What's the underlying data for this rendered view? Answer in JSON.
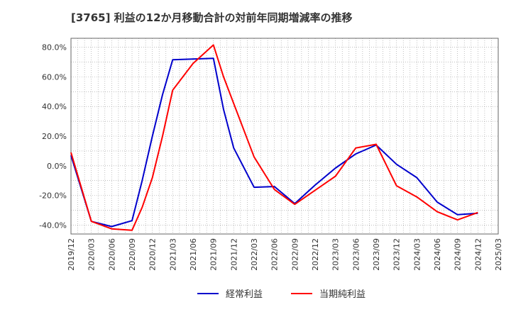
{
  "chart_data": {
    "type": "line",
    "title": "[3765]  利益の12か月移動合計の対前年同期増減率の推移",
    "xlabel": "",
    "ylabel": "",
    "ylim": [
      -46,
      86
    ],
    "yticks": [
      -40,
      -20,
      0,
      20,
      40,
      60,
      80
    ],
    "ytick_labels": [
      "-40.0%",
      "-20.0%",
      "0.0%",
      "20.0%",
      "40.0%",
      "60.0%",
      "80.0%"
    ],
    "x_ticks": [
      "2019/12",
      "2020/03",
      "2020/06",
      "2020/09",
      "2020/12",
      "2021/03",
      "2021/06",
      "2021/09",
      "2021/12",
      "2022/03",
      "2022/06",
      "2022/09",
      "2022/12",
      "2023/03",
      "2023/06",
      "2023/09",
      "2023/12",
      "2024/03",
      "2024/06",
      "2024/09",
      "2024/12",
      "2025/03"
    ],
    "grid": true,
    "legend_position": "bottom-center",
    "series": [
      {
        "name": "経常利益",
        "color": "#0000cc",
        "points": [
          [
            0,
            7.0
          ],
          [
            1,
            -37.5
          ],
          [
            2,
            -41.0
          ],
          [
            3,
            -37.0
          ],
          [
            3.5,
            -10.0
          ],
          [
            4,
            20.0
          ],
          [
            4.5,
            48.0
          ],
          [
            5,
            71.5
          ],
          [
            6,
            72.0
          ],
          [
            7,
            72.5
          ],
          [
            7.5,
            38.0
          ],
          [
            8,
            12.0
          ],
          [
            9,
            -14.5
          ],
          [
            10,
            -14.0
          ],
          [
            11,
            -25.5
          ],
          [
            12,
            -13.0
          ],
          [
            13,
            -1.5
          ],
          [
            14,
            8.0
          ],
          [
            15,
            14.0
          ],
          [
            16,
            1.0
          ],
          [
            17,
            -8.0
          ],
          [
            18,
            -24.5
          ],
          [
            19,
            -33.0
          ],
          [
            20,
            -32.0
          ]
        ]
      },
      {
        "name": "当期純利益",
        "color": "#ff0000",
        "points": [
          [
            0,
            9.0
          ],
          [
            1,
            -37.5
          ],
          [
            2,
            -42.5
          ],
          [
            3,
            -43.5
          ],
          [
            3.5,
            -28.0
          ],
          [
            4,
            -8.0
          ],
          [
            4.5,
            20.0
          ],
          [
            5,
            51.0
          ],
          [
            6,
            69.0
          ],
          [
            7,
            81.5
          ],
          [
            7.5,
            60.0
          ],
          [
            8,
            42.0
          ],
          [
            9,
            6.0
          ],
          [
            10,
            -16.0
          ],
          [
            11,
            -26.0
          ],
          [
            12,
            -16.5
          ],
          [
            13,
            -7.0
          ],
          [
            14,
            12.0
          ],
          [
            15,
            14.5
          ],
          [
            16,
            -13.5
          ],
          [
            17,
            -21.0
          ],
          [
            18,
            -31.0
          ],
          [
            19,
            -36.5
          ],
          [
            20,
            -31.5
          ]
        ]
      }
    ]
  }
}
